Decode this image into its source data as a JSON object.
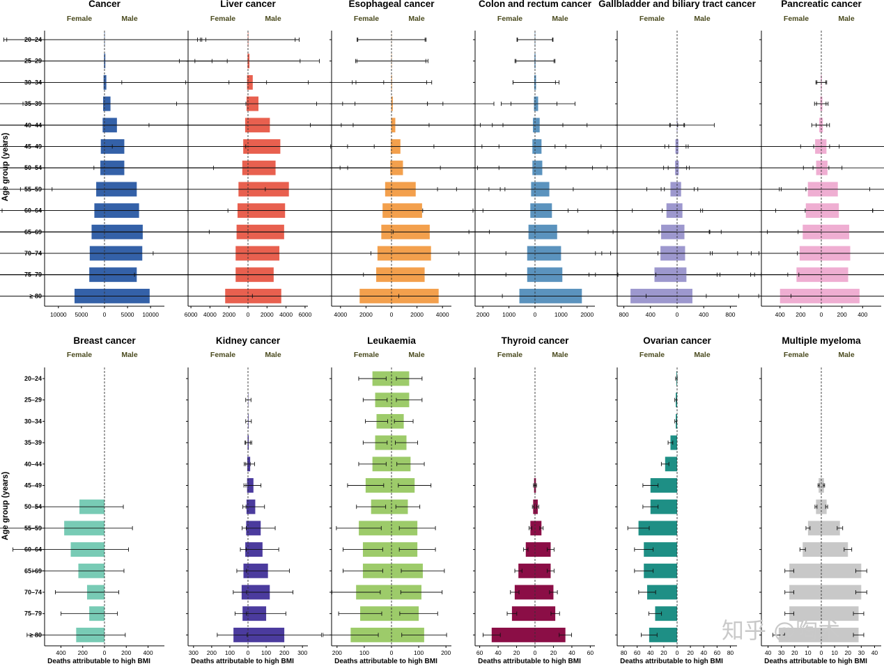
{
  "y_axis_label": "Age group (years)",
  "x_axis_label": "Deaths attributable to high BMI",
  "female_label": "Female",
  "male_label": "Male",
  "age_groups": [
    "20–24",
    "25–29",
    "30–34",
    "35–39",
    "40–44",
    "45–49",
    "50–54",
    "55–59",
    "60–64",
    "65–69",
    "70–74",
    "75–79",
    "≥ 80"
  ],
  "watermark": "知乎 @陶术",
  "chart_data": [
    {
      "type": "bar",
      "title": "Cancer",
      "color": "#3461a8",
      "xlim": [
        -13000,
        13000
      ],
      "ticks": [
        10000,
        5000,
        0,
        5000,
        10000
      ],
      "female": [
        40,
        100,
        200,
        300,
        400,
        800,
        900,
        1800,
        2200,
        2800,
        3200,
        3300,
        6500
      ],
      "male": [
        60,
        180,
        400,
        1300,
        2700,
        4300,
        4300,
        7000,
        7500,
        8300,
        8200,
        7000,
        9800
      ]
    },
    {
      "type": "bar",
      "title": "Liver cancer",
      "color": "#e8604f",
      "xlim": [
        -6300,
        6300
      ],
      "ticks": [
        6000,
        4000,
        2000,
        0,
        2000,
        4000,
        6000
      ],
      "female": [
        20,
        50,
        100,
        150,
        300,
        500,
        600,
        1000,
        1100,
        1200,
        1300,
        1300,
        2400
      ],
      "male": [
        40,
        150,
        500,
        1100,
        2300,
        3400,
        2900,
        4300,
        3900,
        3800,
        3300,
        2700,
        3500
      ]
    },
    {
      "type": "bar",
      "title": "Esophageal  cancer",
      "color": "#f3a04d",
      "xlim": [
        -4700,
        4700
      ],
      "ticks": [
        4000,
        2000,
        0,
        2000,
        4000
      ],
      "female": [
        5,
        10,
        15,
        20,
        30,
        60,
        100,
        500,
        700,
        800,
        1100,
        1200,
        2500
      ],
      "male": [
        10,
        20,
        40,
        100,
        300,
        700,
        900,
        1900,
        2400,
        3000,
        3100,
        2600,
        3700
      ]
    },
    {
      "type": "bar",
      "title": "Colon and rectum cancer",
      "color": "#5b93be",
      "xlim": [
        -2300,
        2300
      ],
      "ticks": [
        2000,
        1000,
        0,
        1000,
        2000
      ],
      "female": [
        10,
        20,
        30,
        40,
        80,
        100,
        100,
        150,
        180,
        250,
        300,
        300,
        600
      ],
      "male": [
        10,
        20,
        40,
        120,
        180,
        250,
        280,
        550,
        650,
        850,
        1000,
        1050,
        1800
      ]
    },
    {
      "type": "bar",
      "title": "Gallbladder and biliary tract cancer",
      "color": "#9d98ce",
      "xlim": [
        -900,
        900
      ],
      "ticks": [
        800,
        400,
        0,
        400,
        800
      ],
      "female": [
        0,
        0,
        0,
        0,
        5,
        25,
        30,
        100,
        160,
        240,
        250,
        340,
        700
      ],
      "male": [
        0,
        0,
        0,
        0,
        5,
        20,
        25,
        60,
        80,
        110,
        120,
        140,
        230
      ]
    },
    {
      "type": "bar",
      "title": "Pancreatic cancer",
      "color": "#efaed2",
      "xlim": [
        -580,
        580
      ],
      "ticks": [
        400,
        200,
        0,
        200,
        400
      ],
      "female": [
        0,
        0,
        5,
        10,
        20,
        60,
        50,
        130,
        150,
        180,
        210,
        240,
        400
      ],
      "male": [
        0,
        0,
        5,
        10,
        15,
        50,
        60,
        160,
        170,
        270,
        280,
        260,
        370
      ]
    },
    {
      "type": "bar",
      "title": "Breast cancer",
      "color": "#78cbb5",
      "xlim": [
        -550,
        550
      ],
      "ticks": [
        400,
        200,
        0,
        200,
        400
      ],
      "female": [
        0,
        0,
        0,
        0,
        0,
        0,
        230,
        370,
        310,
        240,
        160,
        140,
        260
      ],
      "male": [
        0,
        0,
        0,
        0,
        0,
        0,
        0,
        0,
        0,
        0,
        0,
        0,
        0
      ]
    },
    {
      "type": "bar",
      "title": "Kidney cancer",
      "color": "#4b3b9e",
      "xlim": [
        -330,
        330
      ],
      "ticks": [
        300,
        200,
        100,
        0,
        100,
        200,
        300
      ],
      "female": [
        0,
        0,
        0,
        2,
        4,
        5,
        8,
        10,
        15,
        25,
        35,
        30,
        80
      ],
      "male": [
        0,
        2,
        3,
        4,
        12,
        30,
        40,
        70,
        80,
        110,
        120,
        100,
        200
      ]
    },
    {
      "type": "bar",
      "title": "Leukaemia",
      "color": "#9dcb6a",
      "xlim": [
        -220,
        220
      ],
      "ticks": [
        200,
        100,
        0,
        100,
        200
      ],
      "female": [
        70,
        60,
        55,
        60,
        70,
        95,
        75,
        120,
        105,
        105,
        130,
        115,
        150
      ],
      "male": [
        65,
        65,
        45,
        55,
        70,
        85,
        60,
        95,
        95,
        115,
        110,
        100,
        120
      ]
    },
    {
      "type": "bar",
      "title": "Thyroid cancer",
      "color": "#8b0e46",
      "xlim": [
        -65,
        65
      ],
      "ticks": [
        60,
        40,
        20,
        0,
        20,
        40,
        60
      ],
      "female": [
        0,
        0,
        0,
        0,
        0,
        1,
        2,
        5,
        10,
        18,
        22,
        25,
        47
      ],
      "male": [
        0,
        0,
        0,
        0,
        0,
        1,
        3,
        7,
        17,
        17,
        20,
        22,
        33
      ]
    },
    {
      "type": "bar",
      "title": "Ovarian cancer",
      "color": "#1e8f85",
      "xlim": [
        -90,
        90
      ],
      "ticks": [
        80,
        60,
        40,
        20,
        0,
        20,
        40,
        60,
        80
      ],
      "female": [
        1,
        2,
        2,
        10,
        18,
        40,
        40,
        58,
        50,
        50,
        45,
        33,
        42
      ],
      "male": [
        0,
        0,
        0,
        0,
        0,
        0,
        0,
        0,
        0,
        0,
        0,
        0,
        0
      ]
    },
    {
      "type": "bar",
      "title": "Multiple myeloma",
      "color": "#c8c8c8",
      "xlim": [
        -45,
        45
      ],
      "ticks": [
        40,
        30,
        20,
        10,
        0,
        10,
        20,
        30,
        40
      ],
      "female": [
        0,
        0,
        0,
        0,
        0,
        2,
        4,
        10,
        14,
        24,
        24,
        24,
        32
      ],
      "male": [
        0,
        0,
        0,
        0,
        0,
        2,
        4,
        14,
        20,
        30,
        30,
        28,
        28
      ]
    }
  ]
}
